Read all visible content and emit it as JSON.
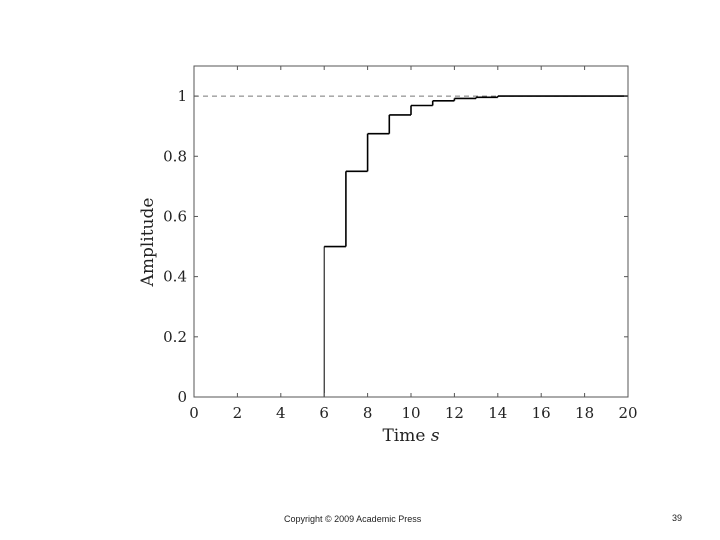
{
  "chart_data": {
    "type": "line",
    "title": "",
    "xlabel": "Time s",
    "xlabel_text": "Time ",
    "xlabel_unit": "s",
    "ylabel": "Amplitude",
    "xlim": [
      0,
      20
    ],
    "ylim": [
      0,
      1.1
    ],
    "xticks": [
      0,
      2,
      4,
      6,
      8,
      10,
      12,
      14,
      16,
      18,
      20
    ],
    "yticks": [
      0,
      0.2,
      0.4,
      0.6,
      0.8,
      1
    ],
    "xtick_labels": [
      "0",
      "2",
      "4",
      "6",
      "8",
      "10",
      "12",
      "14",
      "16",
      "18",
      "20"
    ],
    "ytick_labels": [
      "0",
      "0.2",
      "0.4",
      "0.6",
      "0.8",
      "1"
    ],
    "grid": false,
    "series": [
      {
        "style": "step",
        "color": "#000000",
        "x": [
          0,
          6,
          7,
          8,
          9,
          10,
          11,
          12,
          13,
          14,
          20
        ],
        "y": [
          0,
          0.5,
          0.75,
          0.875,
          0.9375,
          0.96875,
          0.984375,
          0.9921875,
          0.99609375,
          1.0,
          1.0
        ]
      }
    ],
    "reference_lines": [
      {
        "orientation": "horizontal",
        "y": 1,
        "style": "dashed",
        "color": "#777777"
      }
    ]
  },
  "footer": {
    "copyright": "Copyright © 2009 Academic Press",
    "page_number": "39"
  }
}
